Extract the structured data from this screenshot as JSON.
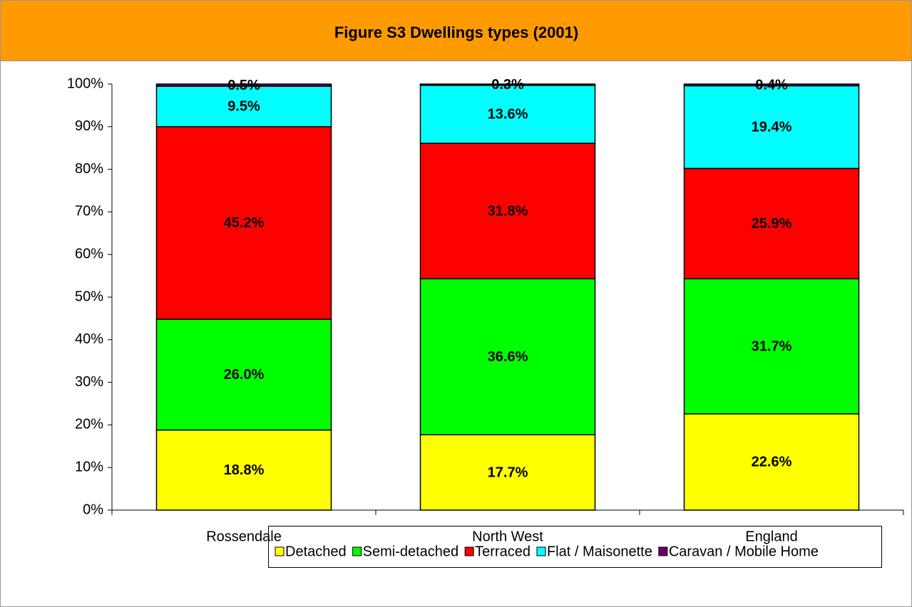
{
  "chart_data": {
    "type": "stacked_bar",
    "title": "Figure S3 Dwellings types (2001)",
    "categories": [
      "Rossendale",
      "North West",
      "England"
    ],
    "series": [
      {
        "name": "Detached",
        "color": "#ffff00",
        "values": [
          18.8,
          17.7,
          22.6
        ],
        "value_labels": [
          "18.8%",
          "17.7%",
          "22.6%"
        ]
      },
      {
        "name": "Semi-detached",
        "color": "#00ff00",
        "values": [
          26.0,
          36.6,
          31.7
        ],
        "value_labels": [
          "26.0%",
          "36.6%",
          "31.7%"
        ]
      },
      {
        "name": "Terraced",
        "color": "#ff0000",
        "values": [
          45.2,
          31.8,
          25.9
        ],
        "value_labels": [
          "45.2%",
          "31.8%",
          "25.9%"
        ]
      },
      {
        "name": "Flat / Maisonette",
        "color": "#00ffff",
        "values": [
          9.5,
          13.6,
          19.4
        ],
        "value_labels": [
          "9.5%",
          "13.6%",
          "19.4%"
        ]
      },
      {
        "name": "Caravan / Mobile Home",
        "color": "#660066",
        "values": [
          0.5,
          0.3,
          0.4
        ],
        "value_labels": [
          "0.5%",
          "0.3%",
          "0.4%"
        ]
      }
    ],
    "ylim": [
      0,
      100
    ],
    "yticks": [
      {
        "value": 0,
        "label": "0%"
      },
      {
        "value": 10,
        "label": "10%"
      },
      {
        "value": 20,
        "label": "20%"
      },
      {
        "value": 30,
        "label": "30%"
      },
      {
        "value": 40,
        "label": "40%"
      },
      {
        "value": 50,
        "label": "50%"
      },
      {
        "value": 60,
        "label": "60%"
      },
      {
        "value": 70,
        "label": "70%"
      },
      {
        "value": 80,
        "label": "80%"
      },
      {
        "value": 90,
        "label": "90%"
      },
      {
        "value": 100,
        "label": "100%"
      }
    ],
    "legend": "bottom"
  }
}
